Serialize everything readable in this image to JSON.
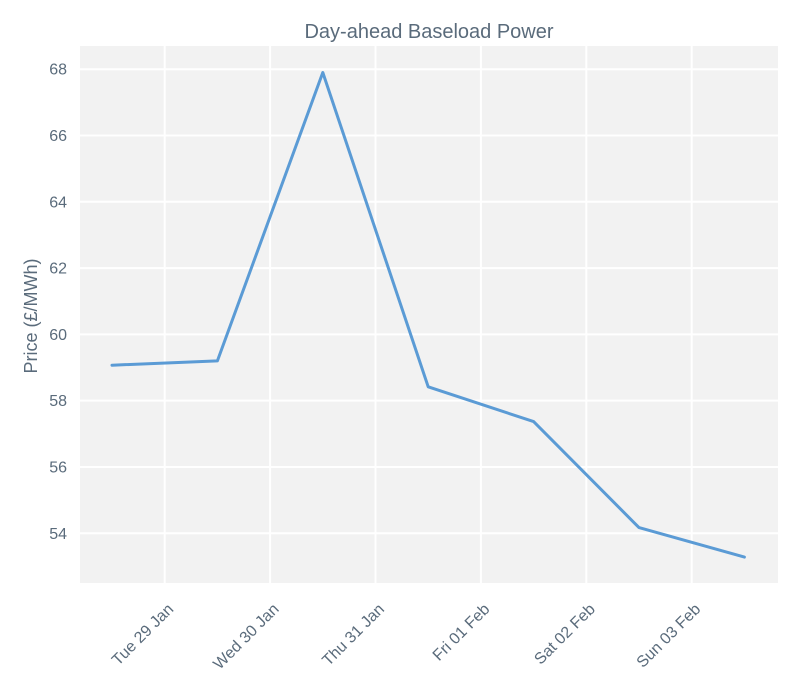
{
  "chart_data": {
    "type": "line",
    "title": "Day-ahead Baseload Power",
    "xlabel": "",
    "ylabel": "Price (£/MWh)",
    "x_tick_labels": [
      "Tue 29 Jan",
      "Wed 30 Jan",
      "Thu 31 Jan",
      "Fri 01 Feb",
      "Sat 02 Feb",
      "Sun 03 Feb"
    ],
    "y_ticks": [
      54,
      56,
      58,
      60,
      62,
      64,
      66,
      68
    ],
    "ylim": [
      52.5,
      68.7
    ],
    "grid": true,
    "series": [
      {
        "color": "#5b9bd5",
        "points": [
          {
            "x": "2019-01-28 12:00",
            "y": 59.07
          },
          {
            "x": "2019-01-29 12:00",
            "y": 59.2
          },
          {
            "x": "2019-01-30 12:00",
            "y": 67.9
          },
          {
            "x": "2019-01-31 12:00",
            "y": 58.42
          },
          {
            "x": "2019-02-01 12:00",
            "y": 57.37
          },
          {
            "x": "2019-02-02 12:00",
            "y": 54.17
          },
          {
            "x": "2019-02-03 12:00",
            "y": 53.28
          }
        ]
      }
    ]
  },
  "colors": {
    "plot_background": "#f2f2f2",
    "grid": "#ffffff",
    "text": "#5a6b7b"
  }
}
